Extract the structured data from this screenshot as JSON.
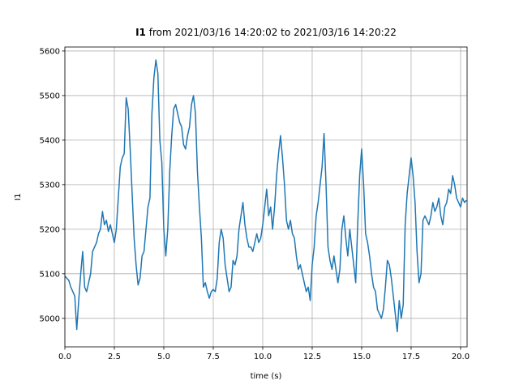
{
  "chart_data": {
    "type": "line",
    "title_name": "I1",
    "title": "from 2021/03/16 14:20:02 to 2021/03/16 14:20:22",
    "xlabel": "time (s)",
    "ylabel": "I1",
    "x": [
      0.0,
      0.1,
      0.2,
      0.3,
      0.4,
      0.5,
      0.6,
      0.7,
      0.8,
      0.9,
      1.0,
      1.1,
      1.2,
      1.3,
      1.4,
      1.5,
      1.6,
      1.7,
      1.8,
      1.9,
      2.0,
      2.1,
      2.2,
      2.3,
      2.4,
      2.5,
      2.6,
      2.7,
      2.8,
      2.9,
      3.0,
      3.1,
      3.2,
      3.3,
      3.4,
      3.5,
      3.6,
      3.7,
      3.8,
      3.9,
      4.0,
      4.1,
      4.2,
      4.3,
      4.4,
      4.5,
      4.6,
      4.7,
      4.8,
      4.9,
      5.0,
      5.1,
      5.2,
      5.3,
      5.4,
      5.5,
      5.6,
      5.7,
      5.8,
      5.9,
      6.0,
      6.1,
      6.2,
      6.3,
      6.4,
      6.5,
      6.6,
      6.7,
      6.8,
      6.9,
      7.0,
      7.1,
      7.2,
      7.3,
      7.4,
      7.5,
      7.6,
      7.7,
      7.8,
      7.9,
      8.0,
      8.1,
      8.2,
      8.3,
      8.4,
      8.5,
      8.6,
      8.7,
      8.8,
      8.9,
      9.0,
      9.1,
      9.2,
      9.3,
      9.4,
      9.5,
      9.6,
      9.7,
      9.8,
      9.9,
      10.0,
      10.1,
      10.2,
      10.3,
      10.4,
      10.5,
      10.6,
      10.7,
      10.8,
      10.9,
      11.0,
      11.1,
      11.2,
      11.3,
      11.4,
      11.5,
      11.6,
      11.7,
      11.8,
      11.9,
      12.0,
      12.1,
      12.2,
      12.3,
      12.4,
      12.5,
      12.6,
      12.7,
      12.8,
      12.9,
      13.0,
      13.1,
      13.2,
      13.3,
      13.4,
      13.5,
      13.6,
      13.7,
      13.8,
      13.9,
      14.0,
      14.1,
      14.2,
      14.3,
      14.4,
      14.5,
      14.6,
      14.7,
      14.8,
      14.9,
      15.0,
      15.1,
      15.2,
      15.3,
      15.4,
      15.5,
      15.6,
      15.7,
      15.8,
      15.9,
      16.0,
      16.1,
      16.2,
      16.3,
      16.4,
      16.5,
      16.6,
      16.7,
      16.8,
      16.9,
      17.0,
      17.1,
      17.2,
      17.3,
      17.4,
      17.5,
      17.6,
      17.7,
      17.8,
      17.9,
      18.0,
      18.1,
      18.2,
      18.3,
      18.4,
      18.5,
      18.6,
      18.7,
      18.8,
      18.9,
      19.0,
      19.1,
      19.2,
      19.3,
      19.4,
      19.5,
      19.6,
      19.7,
      19.8,
      19.9,
      20.0,
      20.1,
      20.2,
      20.3
    ],
    "series": [
      {
        "name": "I1",
        "color": "#1f77b4",
        "values": [
          5095,
          5090,
          5085,
          5070,
          5060,
          5050,
          4975,
          5040,
          5100,
          5150,
          5070,
          5060,
          5080,
          5100,
          5150,
          5160,
          5170,
          5190,
          5200,
          5240,
          5210,
          5220,
          5195,
          5210,
          5190,
          5170,
          5200,
          5270,
          5340,
          5360,
          5370,
          5495,
          5470,
          5380,
          5280,
          5180,
          5120,
          5075,
          5090,
          5140,
          5150,
          5200,
          5250,
          5270,
          5460,
          5540,
          5580,
          5550,
          5400,
          5350,
          5200,
          5140,
          5200,
          5330,
          5410,
          5470,
          5480,
          5460,
          5440,
          5430,
          5390,
          5380,
          5410,
          5430,
          5480,
          5500,
          5460,
          5330,
          5250,
          5180,
          5070,
          5080,
          5060,
          5045,
          5060,
          5065,
          5060,
          5090,
          5170,
          5200,
          5180,
          5120,
          5090,
          5060,
          5070,
          5130,
          5120,
          5140,
          5200,
          5230,
          5260,
          5210,
          5180,
          5160,
          5160,
          5150,
          5170,
          5190,
          5170,
          5180,
          5210,
          5250,
          5290,
          5230,
          5250,
          5200,
          5250,
          5320,
          5370,
          5410,
          5360,
          5300,
          5220,
          5200,
          5220,
          5190,
          5180,
          5140,
          5110,
          5120,
          5100,
          5080,
          5060,
          5070,
          5040,
          5120,
          5160,
          5230,
          5260,
          5300,
          5340,
          5415,
          5300,
          5160,
          5130,
          5110,
          5140,
          5110,
          5080,
          5110,
          5200,
          5230,
          5180,
          5140,
          5200,
          5160,
          5120,
          5080,
          5210,
          5320,
          5380,
          5300,
          5190,
          5170,
          5140,
          5100,
          5070,
          5060,
          5020,
          5010,
          5000,
          5020,
          5070,
          5130,
          5120,
          5090,
          5050,
          5010,
          4970,
          5040,
          5000,
          5030,
          5210,
          5280,
          5320,
          5360,
          5320,
          5260,
          5150,
          5080,
          5100,
          5220,
          5230,
          5220,
          5210,
          5230,
          5260,
          5240,
          5250,
          5270,
          5230,
          5210,
          5250,
          5260,
          5290,
          5280,
          5320,
          5300,
          5270,
          5260,
          5250,
          5270,
          5260,
          5265
        ]
      }
    ],
    "xlim": [
      0,
      20.33
    ],
    "ylim": [
      4936,
      5609
    ],
    "xticks": [
      {
        "value": 0,
        "label": "0.0"
      },
      {
        "value": 2.5,
        "label": "2.5"
      },
      {
        "value": 5,
        "label": "5.0"
      },
      {
        "value": 7.5,
        "label": "7.5"
      },
      {
        "value": 10,
        "label": "10.0"
      },
      {
        "value": 12.5,
        "label": "12.5"
      },
      {
        "value": 15,
        "label": "15.0"
      },
      {
        "value": 17.5,
        "label": "17.5"
      },
      {
        "value": 20,
        "label": "20.0"
      }
    ],
    "yticks": [
      5000,
      5100,
      5200,
      5300,
      5400,
      5500,
      5600
    ],
    "grid": true
  }
}
